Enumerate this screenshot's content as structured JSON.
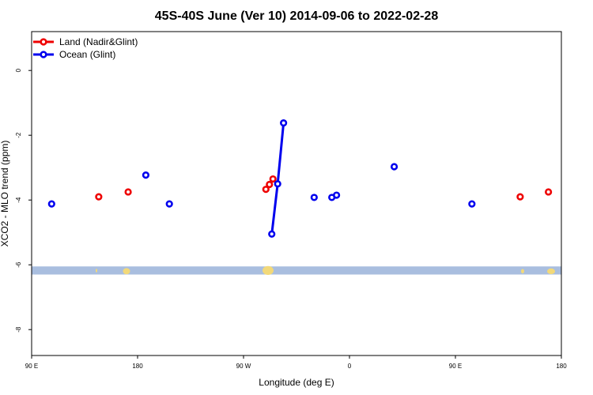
{
  "chart_data": {
    "type": "scatter",
    "title": "45S-40S June (Ver 10)   2014-09-06 to 2022-02-28",
    "xlabel": "Longitude (deg E)",
    "ylabel": "XCO2 - MLO trend (ppm)",
    "xlim": [
      90,
      540
    ],
    "ylim": [
      -8.8,
      1.2
    ],
    "x_ticks": [
      {
        "value": 90,
        "label": "90 E"
      },
      {
        "value": 180,
        "label": "180"
      },
      {
        "value": 270,
        "label": "90 W"
      },
      {
        "value": 360,
        "label": "0"
      },
      {
        "value": 450,
        "label": "90 E"
      },
      {
        "value": 540,
        "label": "180"
      }
    ],
    "y_ticks": [
      {
        "value": 0,
        "label": "0"
      },
      {
        "value": -2,
        "label": "-2"
      },
      {
        "value": -4,
        "label": "-4"
      },
      {
        "value": -6,
        "label": "-6"
      },
      {
        "value": -8,
        "label": "-8"
      }
    ],
    "grid": false,
    "legend_position": "top-left",
    "map_strip": {
      "y_top": -6.05,
      "y_bottom": -6.3,
      "ocean_color": "#a9bedf",
      "land_color": "#f2d97a"
    },
    "series": [
      {
        "name": "Land (Nadir&Glint)",
        "color": "#ee0000",
        "points": [
          {
            "x": 147,
            "y": -3.9
          },
          {
            "x": 172,
            "y": -3.75
          },
          {
            "x": 289,
            "y": -3.67
          },
          {
            "x": 292,
            "y": -3.52
          },
          {
            "x": 295,
            "y": -3.35
          },
          {
            "x": 505,
            "y": -3.9
          },
          {
            "x": 529,
            "y": -3.75
          }
        ]
      },
      {
        "name": "Ocean (Glint)",
        "color": "#0000ee",
        "points": [
          {
            "x": 107,
            "y": -4.12
          },
          {
            "x": 187,
            "y": -3.23
          },
          {
            "x": 207,
            "y": -4.12
          },
          {
            "x": 330,
            "y": -3.92
          },
          {
            "x": 345,
            "y": -3.92
          },
          {
            "x": 349,
            "y": -3.85
          },
          {
            "x": 398,
            "y": -2.97
          },
          {
            "x": 464,
            "y": -4.12
          }
        ],
        "line_segments": [
          [
            {
              "x": 294,
              "y": -5.05
            },
            {
              "x": 299,
              "y": -3.5
            },
            {
              "x": 304,
              "y": -1.62
            }
          ]
        ],
        "line_points": [
          {
            "x": 294,
            "y": -5.05
          },
          {
            "x": 299,
            "y": -3.5
          },
          {
            "x": 304,
            "y": -1.62
          }
        ]
      }
    ]
  }
}
